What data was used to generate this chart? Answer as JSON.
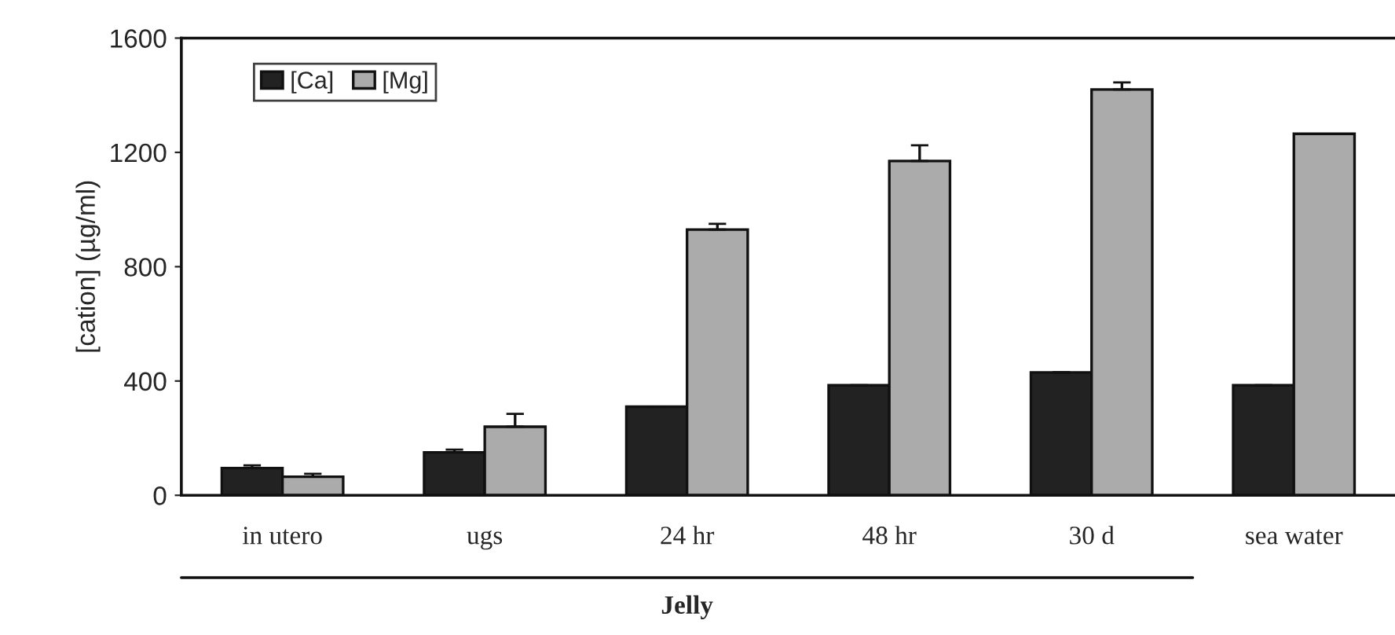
{
  "chart_data": {
    "type": "bar",
    "categories": [
      "in utero",
      "ugs",
      "24 hr",
      "48 hr",
      "30 d",
      "sea water"
    ],
    "series": [
      {
        "name": "[Ca]",
        "color": "#222222",
        "values": [
          95,
          150,
          310,
          385,
          430,
          385
        ],
        "errors": [
          10,
          10,
          null,
          null,
          null,
          null
        ]
      },
      {
        "name": "[Mg]",
        "color": "#ababab",
        "values": [
          65,
          240,
          930,
          1170,
          1420,
          1265
        ],
        "errors": [
          10,
          45,
          20,
          55,
          25,
          null
        ]
      }
    ],
    "ylabel": "[cation] (µg/ml)",
    "ylim": [
      0,
      1600
    ],
    "yticks": [
      0,
      400,
      800,
      1200,
      1600
    ],
    "annotations": [
      "Jelly"
    ],
    "legend": "top left",
    "grid": false
  }
}
